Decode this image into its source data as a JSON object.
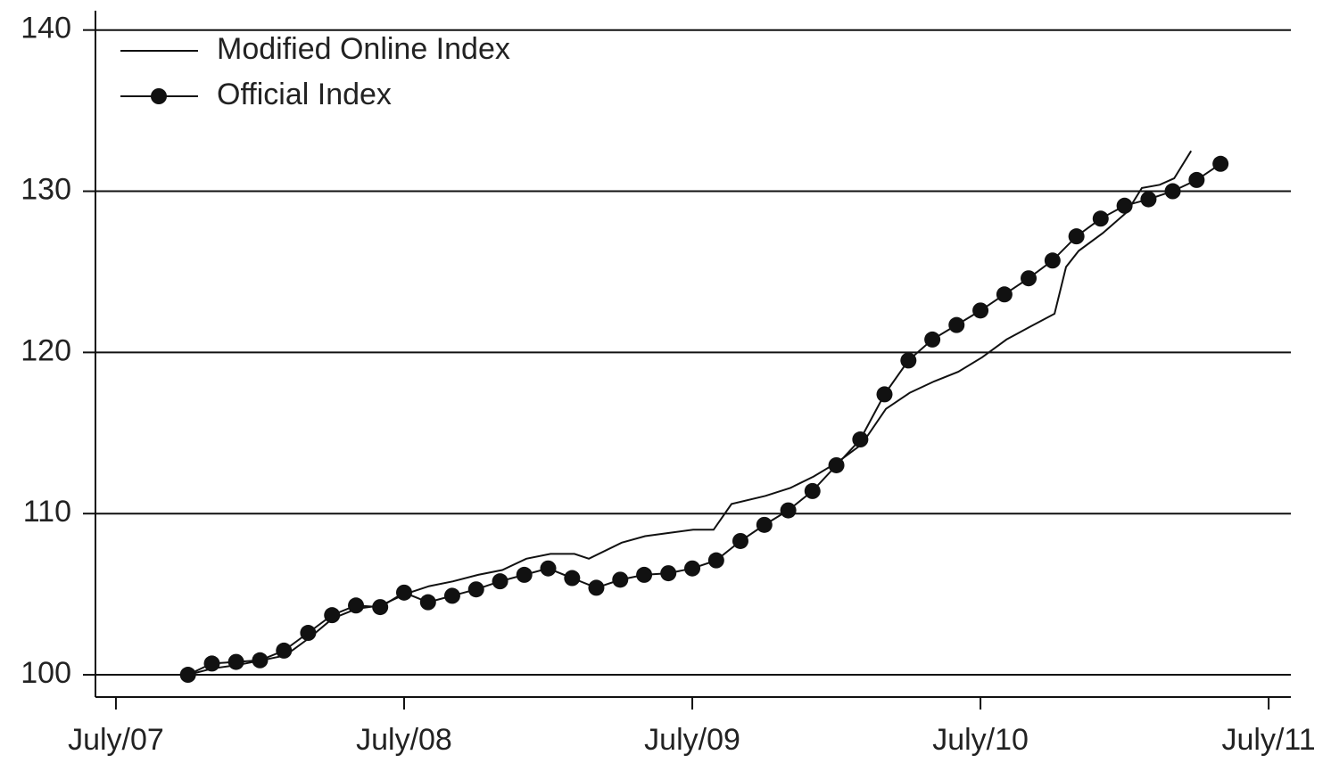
{
  "chart_data": {
    "type": "line",
    "xlim": [
      2007.429,
      2011.577
    ],
    "ylim": [
      98.62,
      141.2
    ],
    "xticks": [
      {
        "value": 2007.5,
        "label": "July/07"
      },
      {
        "value": 2008.5,
        "label": "July/08"
      },
      {
        "value": 2009.5,
        "label": "July/09"
      },
      {
        "value": 2010.5,
        "label": "July/10"
      },
      {
        "value": 2011.5,
        "label": "July/11"
      }
    ],
    "yticks": [
      100,
      110,
      120,
      130,
      140
    ],
    "grid": true,
    "legend": "top-left",
    "series": [
      {
        "name": "Modified Online Index",
        "color": "#111111",
        "marker": "none",
        "x": [
          2007.751,
          2007.837,
          2007.921,
          2008.005,
          2008.088,
          2008.172,
          2008.252,
          2008.336,
          2008.419,
          2008.503,
          2008.587,
          2008.67,
          2008.757,
          2008.841,
          2008.924,
          2009.008,
          2009.091,
          2009.141,
          2009.255,
          2009.336,
          2009.419,
          2009.503,
          2009.574,
          2009.636,
          2009.754,
          2009.841,
          2009.921,
          2010.005,
          2010.088,
          2010.172,
          2010.255,
          2010.339,
          2010.423,
          2010.506,
          2010.59,
          2010.673,
          2010.757,
          2010.797,
          2010.841,
          2010.924,
          2011.008,
          2011.06,
          2011.122,
          2011.172,
          2011.231
        ],
        "values": [
          100.0,
          100.4,
          100.6,
          100.9,
          101.2,
          102.3,
          103.5,
          104.1,
          104.3,
          105.0,
          105.5,
          105.8,
          106.2,
          106.5,
          107.2,
          107.5,
          107.5,
          107.2,
          108.2,
          108.6,
          108.8,
          109.0,
          109.0,
          110.6,
          111.1,
          111.6,
          112.3,
          113.2,
          114.3,
          116.5,
          117.5,
          118.2,
          118.8,
          119.7,
          120.8,
          121.6,
          122.4,
          125.3,
          126.3,
          127.4,
          128.7,
          130.2,
          130.4,
          130.8,
          132.5
        ]
      },
      {
        "name": "Official Index",
        "color": "#111111",
        "marker": "circle",
        "x": [
          2007.75,
          2007.833,
          2007.917,
          2008.0,
          2008.083,
          2008.167,
          2008.25,
          2008.333,
          2008.417,
          2008.5,
          2008.583,
          2008.667,
          2008.75,
          2008.833,
          2008.917,
          2009.0,
          2009.083,
          2009.167,
          2009.25,
          2009.333,
          2009.417,
          2009.5,
          2009.583,
          2009.667,
          2009.75,
          2009.833,
          2009.917,
          2010.0,
          2010.083,
          2010.167,
          2010.25,
          2010.333,
          2010.417,
          2010.5,
          2010.583,
          2010.667,
          2010.75,
          2010.833,
          2010.917,
          2011.0,
          2011.083,
          2011.167,
          2011.25,
          2011.333
        ],
        "values": [
          100.0,
          100.7,
          100.8,
          100.9,
          101.5,
          102.6,
          103.7,
          104.3,
          104.2,
          105.1,
          104.5,
          104.9,
          105.3,
          105.8,
          106.2,
          106.6,
          106.0,
          105.4,
          105.9,
          106.2,
          106.3,
          106.6,
          107.1,
          108.3,
          109.3,
          110.2,
          111.4,
          113.0,
          114.6,
          117.4,
          119.5,
          120.8,
          121.7,
          122.6,
          123.6,
          124.6,
          125.7,
          127.2,
          128.3,
          129.1,
          129.5,
          130.0,
          130.7,
          131.7
        ]
      }
    ]
  }
}
